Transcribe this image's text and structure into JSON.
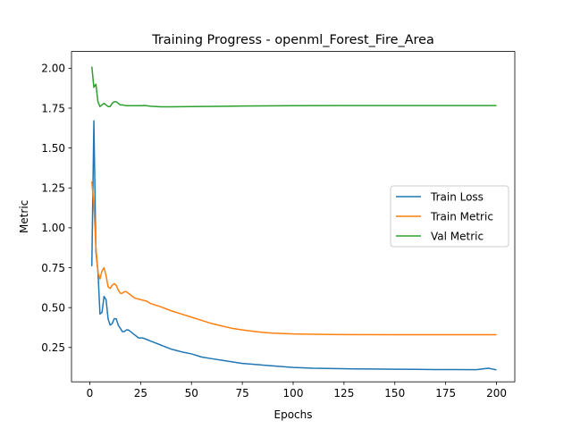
{
  "chart_data": {
    "type": "line",
    "title": "Training Progress - openml_Forest_Fire_Area",
    "xlabel": "Epochs",
    "ylabel": "Metric",
    "xlim": [
      -9,
      209
    ],
    "ylim": [
      0.035,
      2.105
    ],
    "xticks": [
      0,
      25,
      50,
      75,
      100,
      125,
      150,
      175,
      200
    ],
    "yticks": [
      0.25,
      0.5,
      0.75,
      1.0,
      1.25,
      1.5,
      1.75,
      2.0
    ],
    "ytick_labels": [
      "0.25",
      "0.50",
      "0.75",
      "1.00",
      "1.25",
      "1.50",
      "1.75",
      "2.00"
    ],
    "grid": false,
    "legend_position": "center-right",
    "series": [
      {
        "name": "Train Loss",
        "color": "#1f77b4",
        "points": [
          [
            1,
            0.76
          ],
          [
            2,
            1.67
          ],
          [
            3,
            0.85
          ],
          [
            4,
            0.73
          ],
          [
            5,
            0.46
          ],
          [
            6,
            0.47
          ],
          [
            7,
            0.57
          ],
          [
            8,
            0.55
          ],
          [
            9,
            0.43
          ],
          [
            10,
            0.39
          ],
          [
            11,
            0.4
          ],
          [
            12,
            0.43
          ],
          [
            13,
            0.43
          ],
          [
            14,
            0.39
          ],
          [
            15,
            0.37
          ],
          [
            16,
            0.35
          ],
          [
            17,
            0.35
          ],
          [
            18,
            0.36
          ],
          [
            19,
            0.36
          ],
          [
            20,
            0.35
          ],
          [
            22,
            0.33
          ],
          [
            24,
            0.31
          ],
          [
            26,
            0.31
          ],
          [
            28,
            0.3
          ],
          [
            30,
            0.29
          ],
          [
            32,
            0.28
          ],
          [
            34,
            0.27
          ],
          [
            36,
            0.26
          ],
          [
            38,
            0.25
          ],
          [
            40,
            0.24
          ],
          [
            43,
            0.23
          ],
          [
            46,
            0.22
          ],
          [
            50,
            0.21
          ],
          [
            55,
            0.19
          ],
          [
            60,
            0.18
          ],
          [
            65,
            0.17
          ],
          [
            70,
            0.16
          ],
          [
            75,
            0.15
          ],
          [
            80,
            0.145
          ],
          [
            85,
            0.14
          ],
          [
            90,
            0.135
          ],
          [
            95,
            0.13
          ],
          [
            100,
            0.125
          ],
          [
            110,
            0.12
          ],
          [
            120,
            0.118
          ],
          [
            130,
            0.116
          ],
          [
            140,
            0.115
          ],
          [
            150,
            0.114
          ],
          [
            160,
            0.113
          ],
          [
            170,
            0.112
          ],
          [
            180,
            0.112
          ],
          [
            190,
            0.111
          ],
          [
            196,
            0.12
          ],
          [
            200,
            0.11
          ]
        ]
      },
      {
        "name": "Train Metric",
        "color": "#ff7f0e",
        "points": [
          [
            1,
            1.29
          ],
          [
            2,
            1.15
          ],
          [
            3,
            0.88
          ],
          [
            4,
            0.72
          ],
          [
            5,
            0.68
          ],
          [
            6,
            0.73
          ],
          [
            7,
            0.75
          ],
          [
            8,
            0.7
          ],
          [
            9,
            0.63
          ],
          [
            10,
            0.62
          ],
          [
            11,
            0.64
          ],
          [
            12,
            0.65
          ],
          [
            13,
            0.64
          ],
          [
            14,
            0.61
          ],
          [
            15,
            0.59
          ],
          [
            16,
            0.59
          ],
          [
            17,
            0.6
          ],
          [
            18,
            0.6
          ],
          [
            19,
            0.59
          ],
          [
            20,
            0.58
          ],
          [
            22,
            0.56
          ],
          [
            25,
            0.55
          ],
          [
            28,
            0.54
          ],
          [
            30,
            0.525
          ],
          [
            35,
            0.505
          ],
          [
            40,
            0.48
          ],
          [
            45,
            0.46
          ],
          [
            50,
            0.44
          ],
          [
            55,
            0.42
          ],
          [
            60,
            0.4
          ],
          [
            65,
            0.385
          ],
          [
            70,
            0.37
          ],
          [
            75,
            0.36
          ],
          [
            80,
            0.352
          ],
          [
            85,
            0.345
          ],
          [
            90,
            0.34
          ],
          [
            100,
            0.335
          ],
          [
            110,
            0.333
          ],
          [
            125,
            0.331
          ],
          [
            150,
            0.33
          ],
          [
            175,
            0.33
          ],
          [
            200,
            0.33
          ]
        ]
      },
      {
        "name": "Val Metric",
        "color": "#2ca02c",
        "points": [
          [
            1,
            2.01
          ],
          [
            2,
            1.88
          ],
          [
            3,
            1.9
          ],
          [
            4,
            1.79
          ],
          [
            5,
            1.76
          ],
          [
            6,
            1.77
          ],
          [
            7,
            1.78
          ],
          [
            8,
            1.77
          ],
          [
            9,
            1.76
          ],
          [
            10,
            1.76
          ],
          [
            11,
            1.78
          ],
          [
            12,
            1.79
          ],
          [
            13,
            1.79
          ],
          [
            14,
            1.78
          ],
          [
            15,
            1.77
          ],
          [
            16,
            1.77
          ],
          [
            18,
            1.765
          ],
          [
            20,
            1.765
          ],
          [
            25,
            1.765
          ],
          [
            27,
            1.767
          ],
          [
            30,
            1.762
          ],
          [
            35,
            1.758
          ],
          [
            40,
            1.758
          ],
          [
            50,
            1.76
          ],
          [
            75,
            1.763
          ],
          [
            100,
            1.765
          ],
          [
            125,
            1.766
          ],
          [
            150,
            1.766
          ],
          [
            175,
            1.766
          ],
          [
            200,
            1.766
          ]
        ]
      }
    ]
  }
}
